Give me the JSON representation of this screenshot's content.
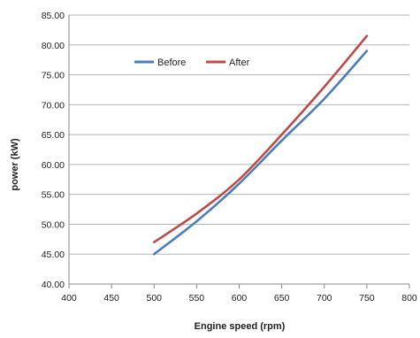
{
  "chart_data": {
    "type": "line",
    "title": "",
    "xlabel": "Engine speed (rpm)",
    "ylabel": "power (kW)",
    "xlim": [
      400,
      800
    ],
    "ylim": [
      40,
      85
    ],
    "x_ticks": [
      "400",
      "450",
      "500",
      "550",
      "600",
      "650",
      "700",
      "750",
      "800"
    ],
    "y_ticks": [
      "40.00",
      "45.00",
      "50.00",
      "55.00",
      "60.00",
      "65.00",
      "70.00",
      "75.00",
      "80.00",
      "85.00"
    ],
    "grid": "horizontal",
    "legend_position": "top-left",
    "series": [
      {
        "name": "Before",
        "color": "#4a7ebb",
        "x": [
          500,
          550,
          600,
          650,
          700,
          750
        ],
        "y": [
          45.0,
          50.5,
          56.8,
          64.0,
          71.0,
          79.0
        ]
      },
      {
        "name": "After",
        "color": "#be4b48",
        "x": [
          500,
          550,
          600,
          650,
          700,
          750
        ],
        "y": [
          47.0,
          51.8,
          57.5,
          65.0,
          73.0,
          81.5
        ]
      }
    ]
  }
}
